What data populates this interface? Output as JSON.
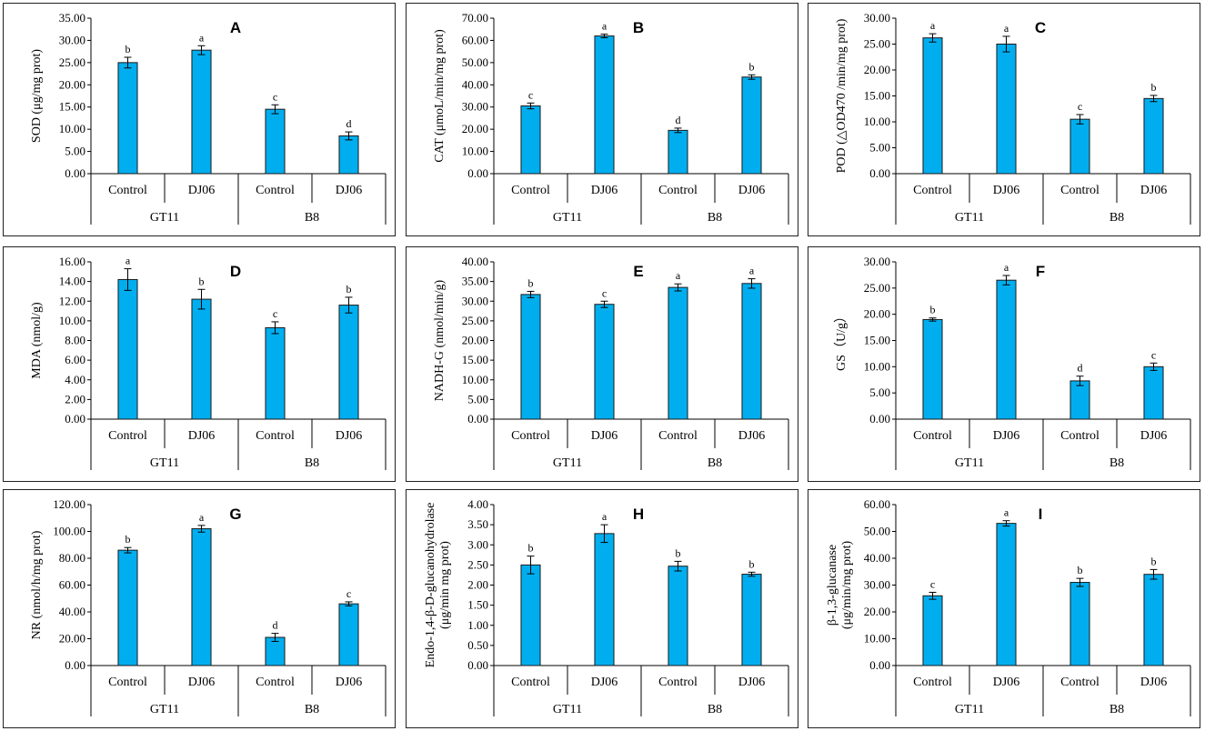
{
  "colors": {
    "bar": "#00AEEF",
    "bar_stroke": "#1a1a1a",
    "axis": "#000000"
  },
  "chart_data": [
    {
      "panel": "A",
      "type": "bar",
      "ylabel": "SOD (μg/mg prot)",
      "ylim": [
        0,
        35
      ],
      "ystep": 5,
      "yticks": [
        "0.00",
        "5.00",
        "10.00",
        "15.00",
        "20.00",
        "25.00",
        "30.00",
        "35.00"
      ],
      "categories": [
        "Control",
        "DJ06",
        "Control",
        "DJ06"
      ],
      "groups": [
        "GT11",
        "B8"
      ],
      "values": [
        25.0,
        27.8,
        14.5,
        8.5
      ],
      "errors": [
        1.2,
        1.0,
        1.0,
        0.9
      ],
      "significance": [
        "b",
        "a",
        "c",
        "d"
      ]
    },
    {
      "panel": "B",
      "type": "bar",
      "ylabel": "CAT (μmoL/min/mg prot)",
      "ylim": [
        0,
        70
      ],
      "ystep": 10,
      "yticks": [
        "0.00",
        "10.00",
        "20.00",
        "30.00",
        "40.00",
        "50.00",
        "60.00",
        "70.00"
      ],
      "categories": [
        "Control",
        "DJ06",
        "Control",
        "DJ06"
      ],
      "groups": [
        "GT11",
        "B8"
      ],
      "values": [
        30.5,
        62.0,
        19.5,
        43.5
      ],
      "errors": [
        1.3,
        0.8,
        1.0,
        1.0
      ],
      "significance": [
        "c",
        "a",
        "d",
        "b"
      ]
    },
    {
      "panel": "C",
      "type": "bar",
      "ylabel": "POD (△OD470 /min/mg prot)",
      "ylim": [
        0,
        30
      ],
      "ystep": 5,
      "yticks": [
        "0.00",
        "5.00",
        "10.00",
        "15.00",
        "20.00",
        "25.00",
        "30.00"
      ],
      "categories": [
        "Control",
        "DJ06",
        "Control",
        "DJ06"
      ],
      "groups": [
        "GT11",
        "B8"
      ],
      "values": [
        26.2,
        25.0,
        10.5,
        14.5
      ],
      "errors": [
        0.8,
        1.5,
        0.9,
        0.6
      ],
      "significance": [
        "a",
        "a",
        "c",
        "b"
      ]
    },
    {
      "panel": "D",
      "type": "bar",
      "ylabel": "MDA (nmol/g)",
      "ylim": [
        0,
        16
      ],
      "ystep": 2,
      "yticks": [
        "0.00",
        "2.00",
        "4.00",
        "6.00",
        "8.00",
        "10.00",
        "12.00",
        "14.00",
        "16.00"
      ],
      "categories": [
        "Control",
        "DJ06",
        "Control",
        "DJ06"
      ],
      "groups": [
        "GT11",
        "B8"
      ],
      "values": [
        14.2,
        12.2,
        9.3,
        11.6
      ],
      "errors": [
        1.1,
        1.0,
        0.6,
        0.8
      ],
      "significance": [
        "a",
        "b",
        "c",
        "b"
      ]
    },
    {
      "panel": "E",
      "type": "bar",
      "ylabel": "NADH-G (nmol/min/g)",
      "ylim": [
        0,
        40
      ],
      "ystep": 5,
      "yticks": [
        "0.00",
        "5.00",
        "10.00",
        "15.00",
        "20.00",
        "25.00",
        "30.00",
        "35.00",
        "40.00"
      ],
      "categories": [
        "Control",
        "DJ06",
        "Control",
        "DJ06"
      ],
      "groups": [
        "GT11",
        "B8"
      ],
      "values": [
        31.7,
        29.2,
        33.5,
        34.5
      ],
      "errors": [
        0.8,
        0.8,
        0.9,
        1.2
      ],
      "significance": [
        "b",
        "c",
        "a",
        "a"
      ]
    },
    {
      "panel": "F",
      "type": "bar",
      "ylabel": "GS（U/g）",
      "ylim": [
        0,
        30
      ],
      "ystep": 5,
      "yticks": [
        "0.00",
        "5.00",
        "10.00",
        "15.00",
        "20.00",
        "25.00",
        "30.00"
      ],
      "categories": [
        "Control",
        "DJ06",
        "Control",
        "DJ06"
      ],
      "groups": [
        "GT11",
        "B8"
      ],
      "values": [
        19.0,
        26.5,
        7.3,
        10.0
      ],
      "errors": [
        0.3,
        0.9,
        0.9,
        0.7
      ],
      "significance": [
        "b",
        "a",
        "d",
        "c"
      ]
    },
    {
      "panel": "G",
      "type": "bar",
      "ylabel": "NR (nmol/h/mg prot)",
      "ylim": [
        0,
        120
      ],
      "ystep": 20,
      "yticks": [
        "0.00",
        "20.00",
        "40.00",
        "60.00",
        "80.00",
        "100.00",
        "120.00"
      ],
      "categories": [
        "Control",
        "DJ06",
        "Control",
        "DJ06"
      ],
      "groups": [
        "GT11",
        "B8"
      ],
      "values": [
        86.0,
        102.0,
        21.0,
        46.0
      ],
      "errors": [
        2.0,
        2.5,
        3.0,
        1.5
      ],
      "significance": [
        "b",
        "a",
        "d",
        "c"
      ]
    },
    {
      "panel": "H",
      "type": "bar",
      "ylabel": "Endo-1,4-β-D-glucanohydrolase",
      "ylabel2": "(μg/min mg prot)",
      "ylim": [
        0,
        4
      ],
      "ystep": 0.5,
      "yticks": [
        "0.00",
        "0.50",
        "1.00",
        "1.50",
        "2.00",
        "2.50",
        "3.00",
        "3.50",
        "4.00"
      ],
      "categories": [
        "Control",
        "DJ06",
        "Control",
        "DJ06"
      ],
      "groups": [
        "GT11",
        "B8"
      ],
      "values": [
        2.5,
        3.28,
        2.47,
        2.27
      ],
      "errors": [
        0.22,
        0.22,
        0.12,
        0.05
      ],
      "significance": [
        "b",
        "a",
        "b",
        "b"
      ]
    },
    {
      "panel": "I",
      "type": "bar",
      "ylabel": "β-1,3-glucanase",
      "ylabel2": "(μg/min/mg prot)",
      "ylim": [
        0,
        60
      ],
      "ystep": 10,
      "yticks": [
        "0.00",
        "10.00",
        "20.00",
        "30.00",
        "40.00",
        "50.00",
        "60.00"
      ],
      "categories": [
        "Control",
        "DJ06",
        "Control",
        "DJ06"
      ],
      "groups": [
        "GT11",
        "B8"
      ],
      "values": [
        26.0,
        53.0,
        31.0,
        34.0
      ],
      "errors": [
        1.3,
        1.0,
        1.5,
        1.8
      ],
      "significance": [
        "c",
        "a",
        "b",
        "b"
      ]
    }
  ]
}
